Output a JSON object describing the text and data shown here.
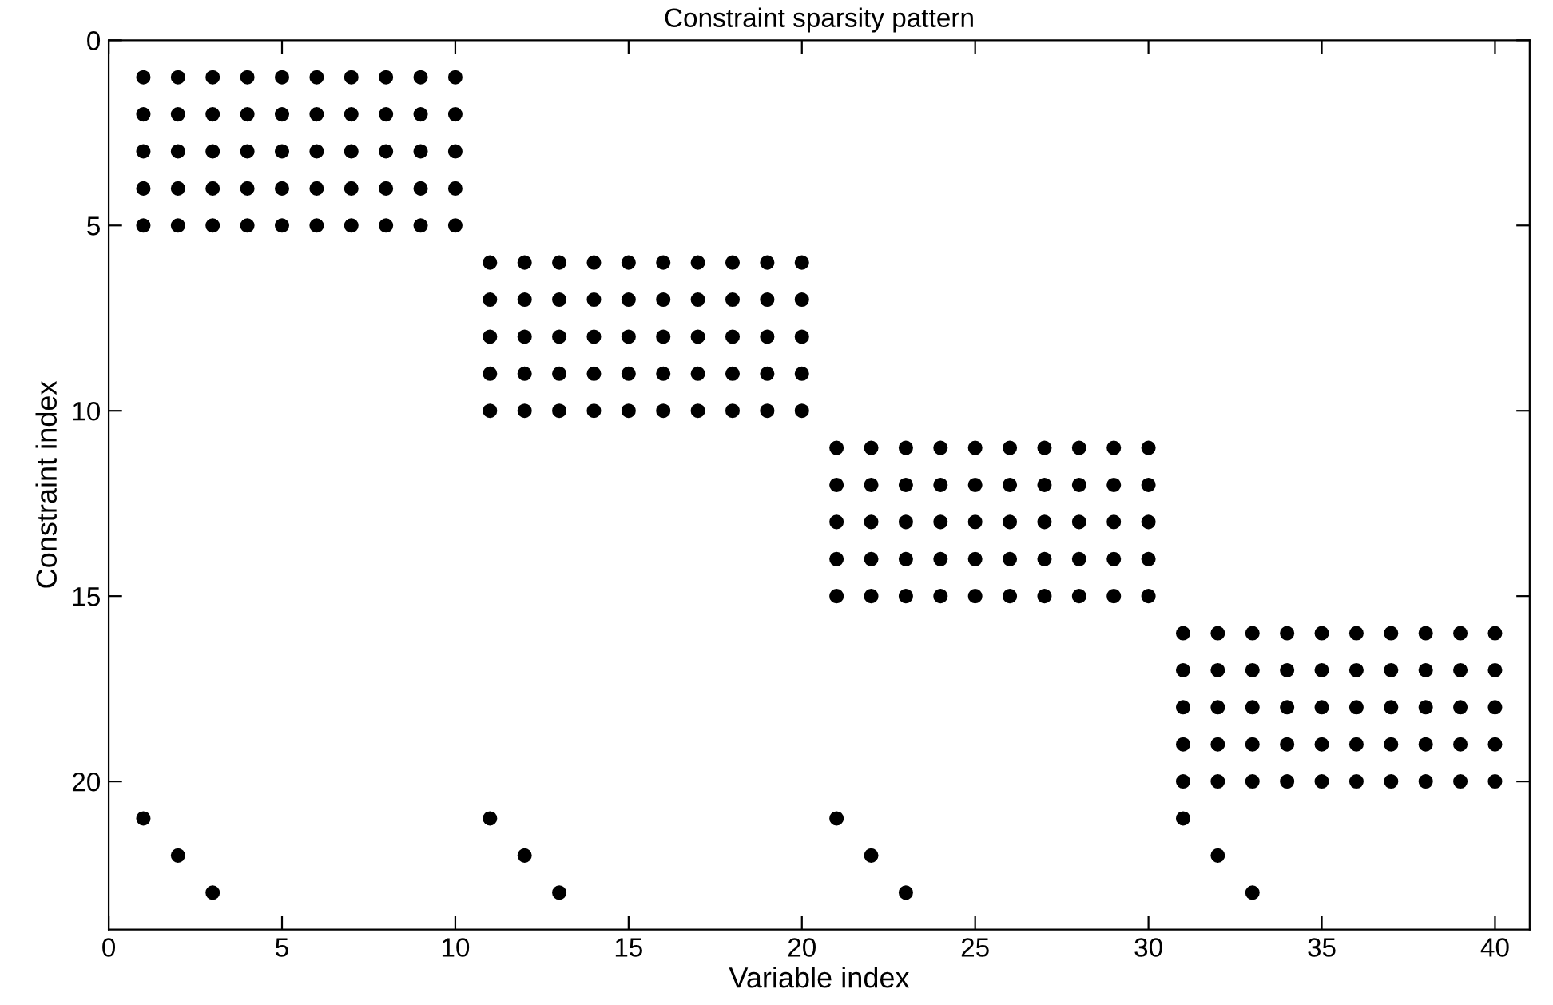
{
  "chart_data": {
    "type": "scatter",
    "title": "Constraint sparsity pattern",
    "xlabel": "Variable index",
    "ylabel": "Constraint index",
    "xlim": [
      0,
      41
    ],
    "ylim": [
      24,
      0
    ],
    "xticks": [
      0,
      5,
      10,
      15,
      20,
      25,
      30,
      35,
      40
    ],
    "yticks": [
      0,
      5,
      10,
      15,
      20
    ],
    "grid": false,
    "marker": "circle",
    "series": [
      {
        "color": "#000000",
        "x": [
          1,
          2,
          3,
          4,
          5,
          6,
          7,
          8,
          9,
          10
        ],
        "values": [
          1,
          1,
          1,
          1,
          1,
          1,
          1,
          1,
          1,
          1
        ]
      },
      {
        "color": "#000000",
        "x": [
          1,
          2,
          3,
          4,
          5,
          6,
          7,
          8,
          9,
          10
        ],
        "values": [
          2,
          2,
          2,
          2,
          2,
          2,
          2,
          2,
          2,
          2
        ]
      },
      {
        "color": "#000000",
        "x": [
          1,
          2,
          3,
          4,
          5,
          6,
          7,
          8,
          9,
          10
        ],
        "values": [
          3,
          3,
          3,
          3,
          3,
          3,
          3,
          3,
          3,
          3
        ]
      },
      {
        "color": "#000000",
        "x": [
          1,
          2,
          3,
          4,
          5,
          6,
          7,
          8,
          9,
          10
        ],
        "values": [
          4,
          4,
          4,
          4,
          4,
          4,
          4,
          4,
          4,
          4
        ]
      },
      {
        "color": "#000000",
        "x": [
          1,
          2,
          3,
          4,
          5,
          6,
          7,
          8,
          9,
          10
        ],
        "values": [
          5,
          5,
          5,
          5,
          5,
          5,
          5,
          5,
          5,
          5
        ]
      },
      {
        "color": "#000000",
        "x": [
          11,
          12,
          13,
          14,
          15,
          16,
          17,
          18,
          19,
          20
        ],
        "values": [
          6,
          6,
          6,
          6,
          6,
          6,
          6,
          6,
          6,
          6
        ]
      },
      {
        "color": "#000000",
        "x": [
          11,
          12,
          13,
          14,
          15,
          16,
          17,
          18,
          19,
          20
        ],
        "values": [
          7,
          7,
          7,
          7,
          7,
          7,
          7,
          7,
          7,
          7
        ]
      },
      {
        "color": "#000000",
        "x": [
          11,
          12,
          13,
          14,
          15,
          16,
          17,
          18,
          19,
          20
        ],
        "values": [
          8,
          8,
          8,
          8,
          8,
          8,
          8,
          8,
          8,
          8
        ]
      },
      {
        "color": "#000000",
        "x": [
          11,
          12,
          13,
          14,
          15,
          16,
          17,
          18,
          19,
          20
        ],
        "values": [
          9,
          9,
          9,
          9,
          9,
          9,
          9,
          9,
          9,
          9
        ]
      },
      {
        "color": "#000000",
        "x": [
          11,
          12,
          13,
          14,
          15,
          16,
          17,
          18,
          19,
          20
        ],
        "values": [
          10,
          10,
          10,
          10,
          10,
          10,
          10,
          10,
          10,
          10
        ]
      },
      {
        "color": "#000000",
        "x": [
          21,
          22,
          23,
          24,
          25,
          26,
          27,
          28,
          29,
          30
        ],
        "values": [
          11,
          11,
          11,
          11,
          11,
          11,
          11,
          11,
          11,
          11
        ]
      },
      {
        "color": "#000000",
        "x": [
          21,
          22,
          23,
          24,
          25,
          26,
          27,
          28,
          29,
          30
        ],
        "values": [
          12,
          12,
          12,
          12,
          12,
          12,
          12,
          12,
          12,
          12
        ]
      },
      {
        "color": "#000000",
        "x": [
          21,
          22,
          23,
          24,
          25,
          26,
          27,
          28,
          29,
          30
        ],
        "values": [
          13,
          13,
          13,
          13,
          13,
          13,
          13,
          13,
          13,
          13
        ]
      },
      {
        "color": "#000000",
        "x": [
          21,
          22,
          23,
          24,
          25,
          26,
          27,
          28,
          29,
          30
        ],
        "values": [
          14,
          14,
          14,
          14,
          14,
          14,
          14,
          14,
          14,
          14
        ]
      },
      {
        "color": "#000000",
        "x": [
          21,
          22,
          23,
          24,
          25,
          26,
          27,
          28,
          29,
          30
        ],
        "values": [
          15,
          15,
          15,
          15,
          15,
          15,
          15,
          15,
          15,
          15
        ]
      },
      {
        "color": "#000000",
        "x": [
          31,
          32,
          33,
          34,
          35,
          36,
          37,
          38,
          39,
          40
        ],
        "values": [
          16,
          16,
          16,
          16,
          16,
          16,
          16,
          16,
          16,
          16
        ]
      },
      {
        "color": "#000000",
        "x": [
          31,
          32,
          33,
          34,
          35,
          36,
          37,
          38,
          39,
          40
        ],
        "values": [
          17,
          17,
          17,
          17,
          17,
          17,
          17,
          17,
          17,
          17
        ]
      },
      {
        "color": "#000000",
        "x": [
          31,
          32,
          33,
          34,
          35,
          36,
          37,
          38,
          39,
          40
        ],
        "values": [
          18,
          18,
          18,
          18,
          18,
          18,
          18,
          18,
          18,
          18
        ]
      },
      {
        "color": "#000000",
        "x": [
          31,
          32,
          33,
          34,
          35,
          36,
          37,
          38,
          39,
          40
        ],
        "values": [
          19,
          19,
          19,
          19,
          19,
          19,
          19,
          19,
          19,
          19
        ]
      },
      {
        "color": "#000000",
        "x": [
          31,
          32,
          33,
          34,
          35,
          36,
          37,
          38,
          39,
          40
        ],
        "values": [
          20,
          20,
          20,
          20,
          20,
          20,
          20,
          20,
          20,
          20
        ]
      },
      {
        "color": "#000000",
        "x": [
          1,
          2,
          3,
          11,
          12,
          13,
          21,
          22,
          23,
          31,
          32,
          33
        ],
        "values": [
          21,
          22,
          23,
          21,
          22,
          23,
          21,
          22,
          23,
          21,
          22,
          23
        ]
      }
    ]
  }
}
